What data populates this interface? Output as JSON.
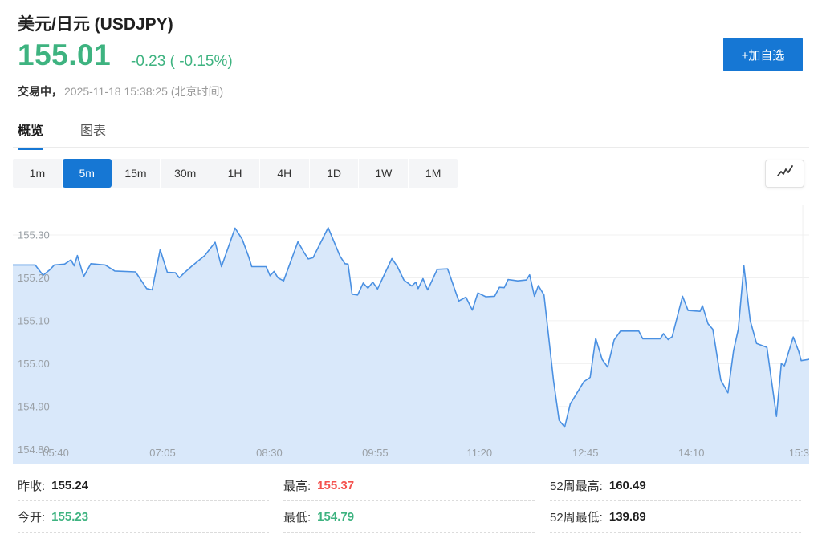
{
  "header": {
    "title": "美元/日元 (USDJPY)",
    "price": "155.01",
    "change": "-0.23 ( -0.15%)",
    "status": "交易中，",
    "timestamp": "2025-11-18 15:38:25 (北京时间)",
    "add_watchlist": "+加自选"
  },
  "tabs": [
    {
      "label": "概览",
      "active": true
    },
    {
      "label": "图表",
      "active": false
    }
  ],
  "ranges": [
    {
      "label": "1m",
      "active": false
    },
    {
      "label": "5m",
      "active": true
    },
    {
      "label": "15m",
      "active": false
    },
    {
      "label": "30m",
      "active": false
    },
    {
      "label": "1H",
      "active": false
    },
    {
      "label": "4H",
      "active": false
    },
    {
      "label": "1D",
      "active": false
    },
    {
      "label": "1W",
      "active": false
    },
    {
      "label": "1M",
      "active": false
    }
  ],
  "icons": {
    "chart_type": "line-chart-icon"
  },
  "colors": {
    "green": "#3eb380",
    "red": "#f4524e",
    "accent": "#1677d4",
    "line": "#4a90e2",
    "fill": "#d9e8fa",
    "grid": "#f0f0f0",
    "tick": "#9aa0a6"
  },
  "stats": [
    {
      "rows": [
        {
          "label": "昨收:",
          "value": "155.24",
          "color": "dark"
        },
        {
          "label": "今开:",
          "value": "155.23",
          "color": "green"
        }
      ]
    },
    {
      "rows": [
        {
          "label": "最高:",
          "value": "155.37",
          "color": "red"
        },
        {
          "label": "最低:",
          "value": "154.79",
          "color": "green"
        }
      ]
    },
    {
      "rows": [
        {
          "label": "52周最高:",
          "value": "160.49",
          "color": "dark"
        },
        {
          "label": "52周最低:",
          "value": "139.89",
          "color": "dark"
        }
      ]
    }
  ],
  "chart_data": {
    "type": "area",
    "symbol": "USDJPY",
    "interval": "5m",
    "ylim": [
      154.767,
      155.371
    ],
    "y_ticks": [
      "155.30",
      "155.20",
      "155.10",
      "155.00",
      "154.90",
      "154.80"
    ],
    "x_labels": [
      {
        "f": 0.054,
        "label": "05:40"
      },
      {
        "f": 0.188,
        "label": "07:05"
      },
      {
        "f": 0.322,
        "label": "08:30"
      },
      {
        "f": 0.455,
        "label": "09:55"
      },
      {
        "f": 0.586,
        "label": "11:20"
      },
      {
        "f": 0.719,
        "label": "12:45"
      },
      {
        "f": 0.852,
        "label": "14:10"
      },
      {
        "f": 0.998,
        "label": "15:3"
      }
    ],
    "right_gridline_f": 0.992,
    "points": [
      [
        0.0,
        155.23
      ],
      [
        0.028,
        155.23
      ],
      [
        0.038,
        155.206
      ],
      [
        0.046,
        155.218
      ],
      [
        0.052,
        155.23
      ],
      [
        0.065,
        155.232
      ],
      [
        0.073,
        155.242
      ],
      [
        0.077,
        155.228
      ],
      [
        0.081,
        155.252
      ],
      [
        0.089,
        155.203
      ],
      [
        0.098,
        155.233
      ],
      [
        0.116,
        155.23
      ],
      [
        0.128,
        155.216
      ],
      [
        0.154,
        155.214
      ],
      [
        0.168,
        155.175
      ],
      [
        0.175,
        155.172
      ],
      [
        0.185,
        155.266
      ],
      [
        0.194,
        155.213
      ],
      [
        0.204,
        155.212
      ],
      [
        0.209,
        155.2
      ],
      [
        0.216,
        155.213
      ],
      [
        0.224,
        155.226
      ],
      [
        0.241,
        155.252
      ],
      [
        0.254,
        155.283
      ],
      [
        0.262,
        155.226
      ],
      [
        0.279,
        155.316
      ],
      [
        0.288,
        155.29
      ],
      [
        0.296,
        155.25
      ],
      [
        0.3,
        155.226
      ],
      [
        0.318,
        155.226
      ],
      [
        0.323,
        155.205
      ],
      [
        0.328,
        155.215
      ],
      [
        0.333,
        155.2
      ],
      [
        0.34,
        155.193
      ],
      [
        0.358,
        155.284
      ],
      [
        0.366,
        155.258
      ],
      [
        0.371,
        155.244
      ],
      [
        0.377,
        155.247
      ],
      [
        0.396,
        155.317
      ],
      [
        0.411,
        155.25
      ],
      [
        0.417,
        155.233
      ],
      [
        0.421,
        155.232
      ],
      [
        0.426,
        155.162
      ],
      [
        0.433,
        155.16
      ],
      [
        0.44,
        155.188
      ],
      [
        0.446,
        155.176
      ],
      [
        0.452,
        155.19
      ],
      [
        0.458,
        155.174
      ],
      [
        0.476,
        155.245
      ],
      [
        0.483,
        155.226
      ],
      [
        0.491,
        155.195
      ],
      [
        0.501,
        155.181
      ],
      [
        0.506,
        155.19
      ],
      [
        0.509,
        155.175
      ],
      [
        0.515,
        155.198
      ],
      [
        0.521,
        155.172
      ],
      [
        0.533,
        155.22
      ],
      [
        0.546,
        155.221
      ],
      [
        0.56,
        155.146
      ],
      [
        0.569,
        155.155
      ],
      [
        0.577,
        155.125
      ],
      [
        0.584,
        155.165
      ],
      [
        0.594,
        155.156
      ],
      [
        0.605,
        155.157
      ],
      [
        0.611,
        155.178
      ],
      [
        0.617,
        155.177
      ],
      [
        0.622,
        155.196
      ],
      [
        0.634,
        155.193
      ],
      [
        0.645,
        155.195
      ],
      [
        0.649,
        155.207
      ],
      [
        0.655,
        155.157
      ],
      [
        0.66,
        155.182
      ],
      [
        0.667,
        155.16
      ],
      [
        0.679,
        154.96
      ],
      [
        0.686,
        154.868
      ],
      [
        0.693,
        154.852
      ],
      [
        0.7,
        154.906
      ],
      [
        0.708,
        154.93
      ],
      [
        0.717,
        154.958
      ],
      [
        0.725,
        154.968
      ],
      [
        0.732,
        155.059
      ],
      [
        0.74,
        155.01
      ],
      [
        0.747,
        154.992
      ],
      [
        0.755,
        155.055
      ],
      [
        0.763,
        155.076
      ],
      [
        0.786,
        155.076
      ],
      [
        0.791,
        155.058
      ],
      [
        0.813,
        155.058
      ],
      [
        0.817,
        155.07
      ],
      [
        0.823,
        155.056
      ],
      [
        0.828,
        155.063
      ],
      [
        0.841,
        155.157
      ],
      [
        0.848,
        155.124
      ],
      [
        0.863,
        155.122
      ],
      [
        0.866,
        155.135
      ],
      [
        0.873,
        155.093
      ],
      [
        0.879,
        155.08
      ],
      [
        0.889,
        154.962
      ],
      [
        0.898,
        154.932
      ],
      [
        0.905,
        155.03
      ],
      [
        0.911,
        155.08
      ],
      [
        0.918,
        155.228
      ],
      [
        0.926,
        155.1
      ],
      [
        0.934,
        155.047
      ],
      [
        0.947,
        155.038
      ],
      [
        0.959,
        154.877
      ],
      [
        0.965,
        155.0
      ],
      [
        0.969,
        154.995
      ],
      [
        0.98,
        155.062
      ],
      [
        0.987,
        155.028
      ],
      [
        0.99,
        155.007
      ],
      [
        1.0,
        155.01
      ]
    ]
  }
}
